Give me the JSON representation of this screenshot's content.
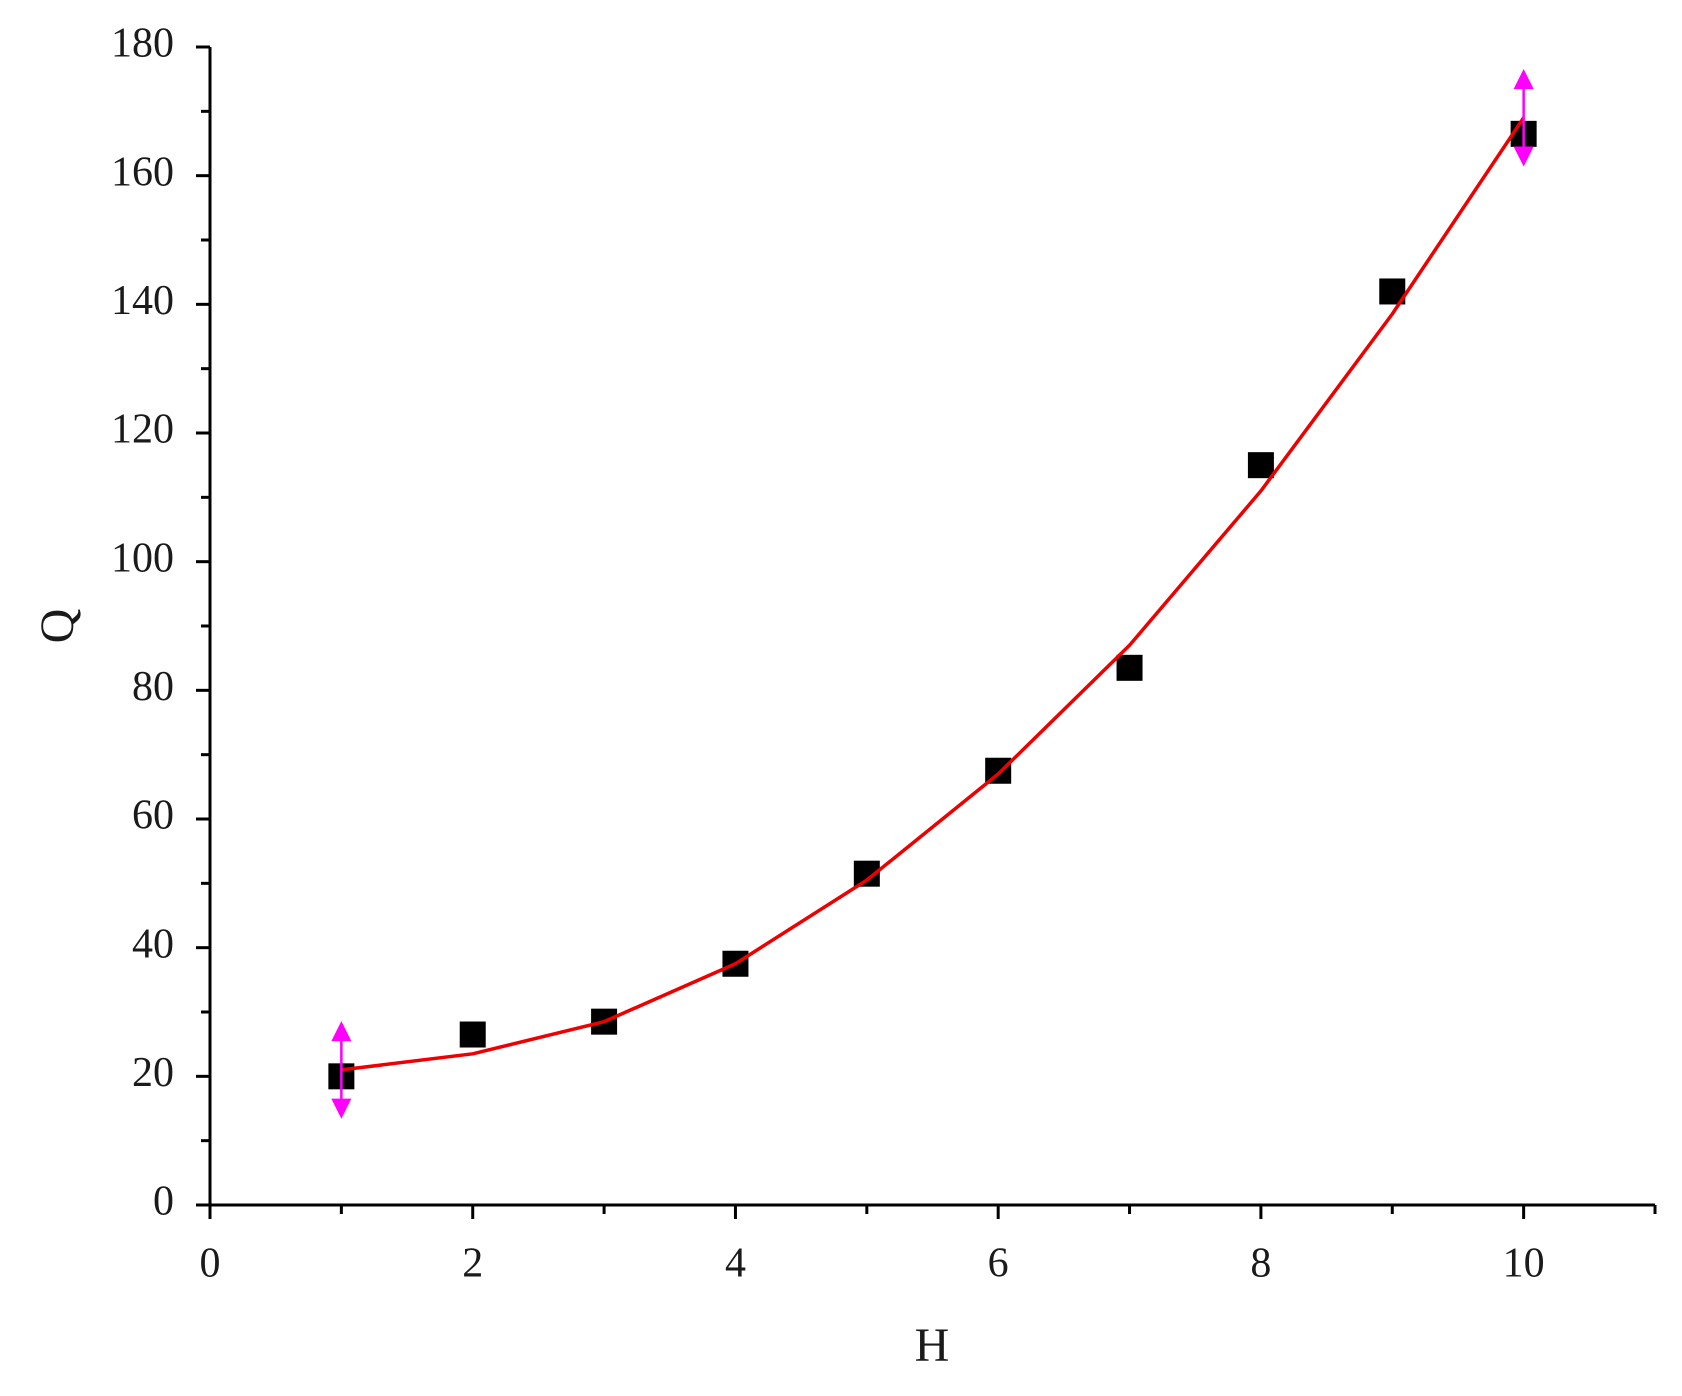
{
  "chart_data": {
    "type": "scatter",
    "x_label": "H",
    "y_label": "Q",
    "xlim": [
      0,
      11
    ],
    "ylim": [
      0,
      180
    ],
    "xticks": [
      0,
      2,
      4,
      6,
      8,
      10
    ],
    "yticks": [
      0,
      20,
      40,
      60,
      80,
      100,
      120,
      140,
      160,
      180
    ],
    "series": [
      {
        "name": "data",
        "kind": "points",
        "color": "#000000",
        "x": [
          1,
          2,
          3,
          4,
          5,
          6,
          7,
          8,
          9,
          10
        ],
        "values": [
          20,
          26.5,
          28.5,
          37.5,
          51.5,
          67.5,
          83.5,
          115,
          142,
          166.5
        ]
      },
      {
        "name": "fit",
        "kind": "line",
        "color": "#ee0000",
        "x": [
          1,
          2,
          3,
          4,
          5,
          6,
          7,
          8,
          9,
          10
        ],
        "values": [
          21,
          23.5,
          28.5,
          37.5,
          50.5,
          67,
          87,
          111,
          138.5,
          169
        ]
      }
    ]
  }
}
